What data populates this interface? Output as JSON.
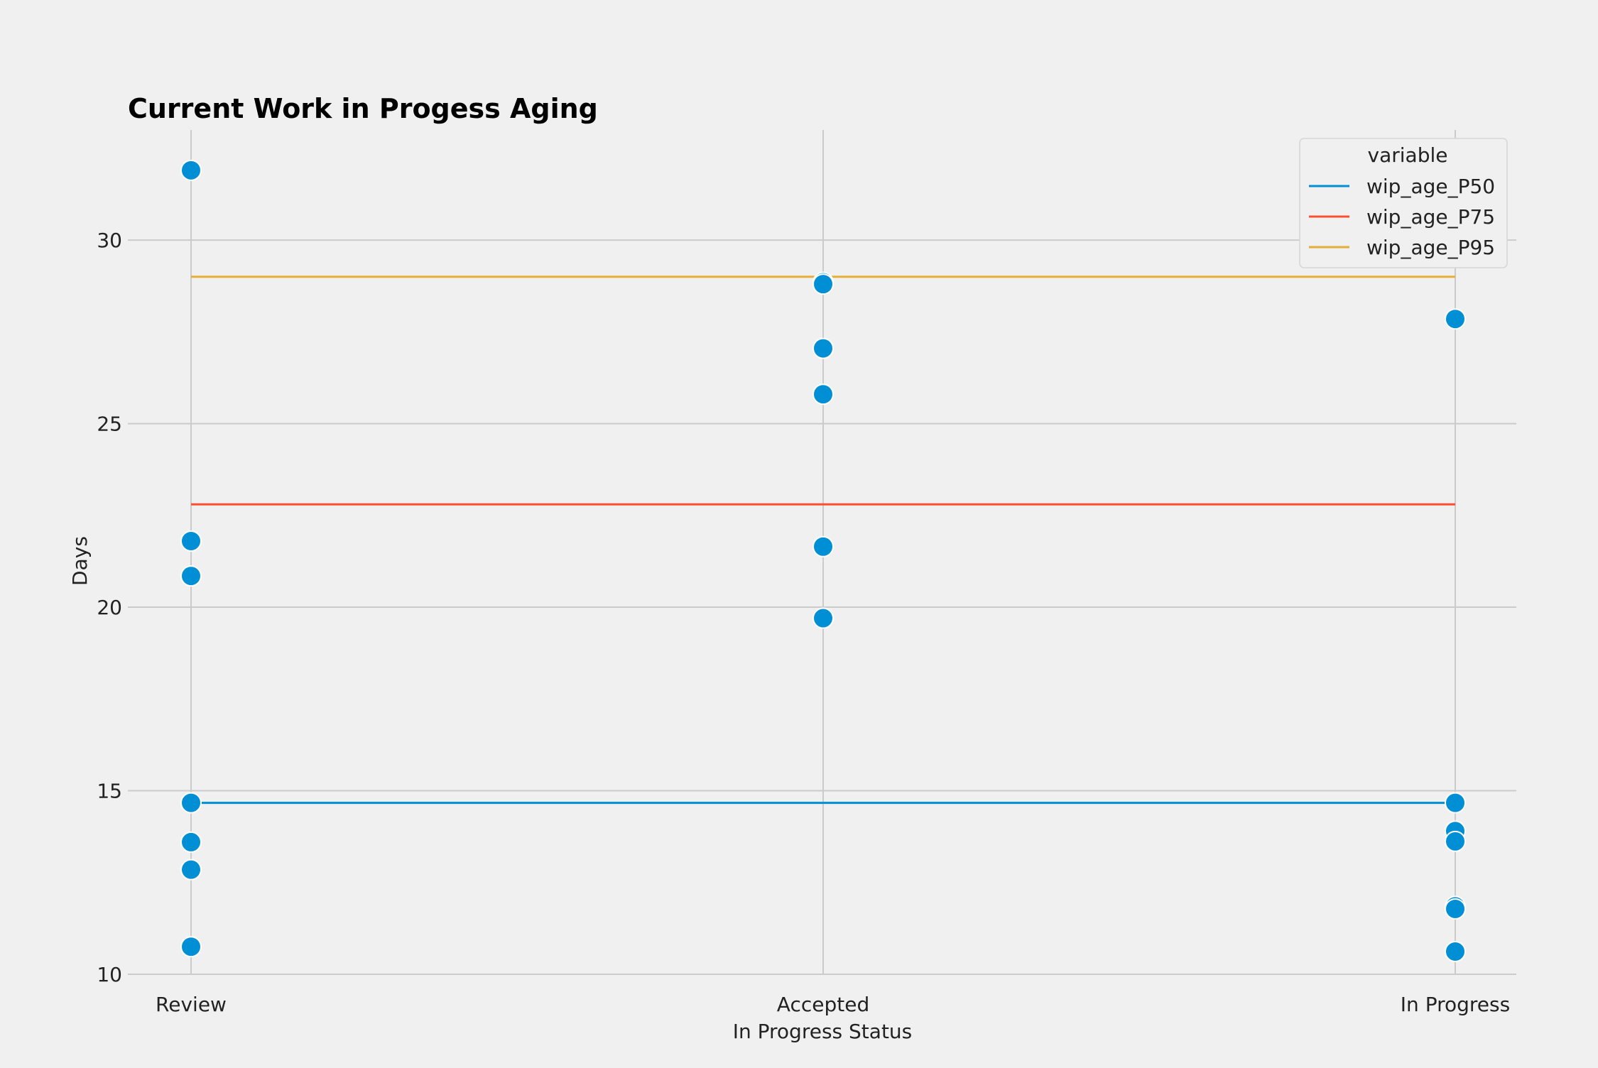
{
  "chart_data": {
    "type": "scatter",
    "title": "Current Work in Progess Aging",
    "xlabel": "In Progress Status",
    "ylabel": "Days",
    "categories": [
      "Review",
      "Accepted",
      "In Progress"
    ],
    "ylim": [
      10,
      33
    ],
    "yticks": [
      10,
      15,
      20,
      25,
      30
    ],
    "grid": true,
    "points": {
      "Review": [
        31.9,
        21.8,
        20.85,
        14.67,
        13.6,
        12.85,
        10.75
      ],
      "Accepted": [
        28.85,
        28.8,
        27.05,
        25.8,
        21.65,
        19.7
      ],
      "In Progress": [
        27.85,
        14.67,
        13.9,
        13.62,
        11.85,
        11.78,
        10.62
      ]
    },
    "point_color": "#008fd5",
    "reference_lines": [
      {
        "name": "wip_age_P50",
        "value": 14.67,
        "color": "#008fd5"
      },
      {
        "name": "wip_age_P75",
        "value": 22.8,
        "color": "#fc4f30"
      },
      {
        "name": "wip_age_P95",
        "value": 29.0,
        "color": "#e5ae38"
      }
    ],
    "legend": {
      "title": "variable",
      "position": "top-right"
    }
  }
}
